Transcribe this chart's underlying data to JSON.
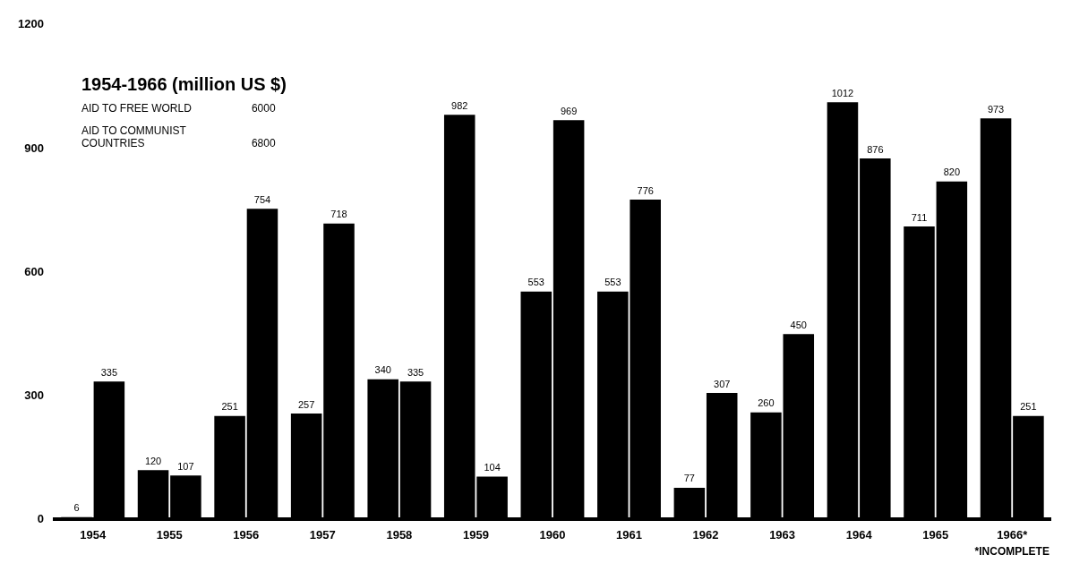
{
  "chart_data": {
    "type": "bar",
    "title": "1954-1966 (million US $)",
    "categories": [
      "1954",
      "1955",
      "1956",
      "1957",
      "1958",
      "1959",
      "1960",
      "1961",
      "1962",
      "1963",
      "1964",
      "1965",
      "1966*"
    ],
    "series": [
      {
        "color": "#000000",
        "values": [
          6,
          120,
          251,
          257,
          340,
          982,
          553,
          553,
          77,
          260,
          1012,
          711,
          973
        ]
      },
      {
        "color": "#000000",
        "values": [
          335,
          107,
          754,
          718,
          335,
          104,
          969,
          776,
          307,
          450,
          876,
          820,
          251
        ]
      }
    ],
    "ylim": [
      0,
      1200
    ],
    "yticks": [
      0,
      300,
      600,
      900,
      1200
    ],
    "grid": false,
    "legend": false,
    "data_labels": true,
    "annotations": [
      "AID TO FREE WORLD",
      "6000",
      "AID TO COMMUNIST COUNTRIES",
      "6800",
      "*INCOMPLETE"
    ]
  }
}
